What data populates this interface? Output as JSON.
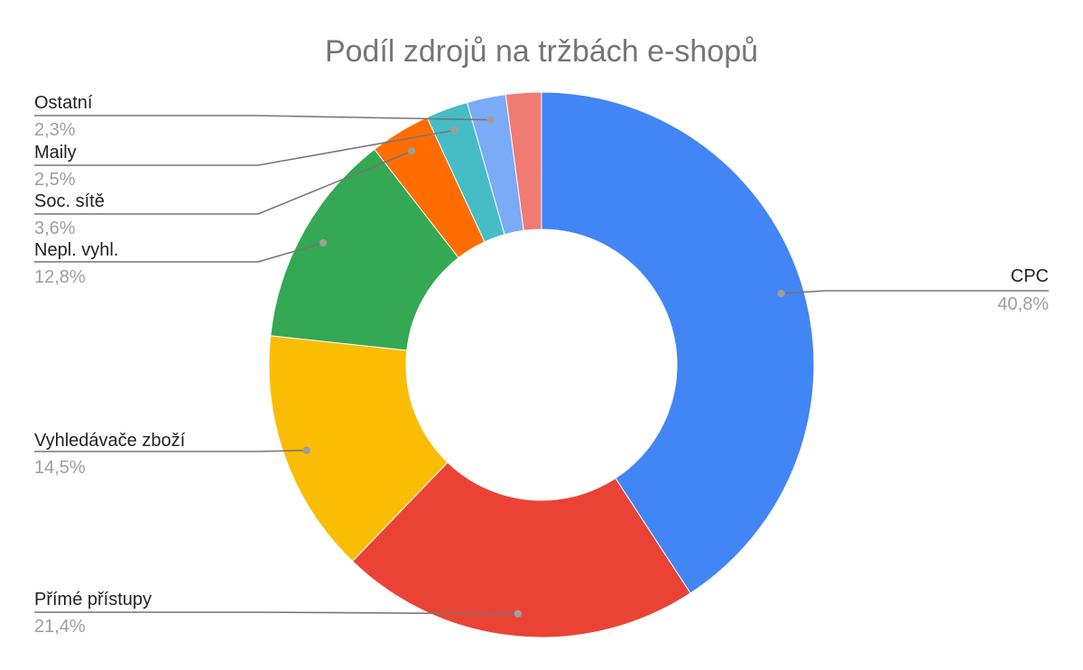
{
  "chart_data": {
    "type": "pie",
    "variant": "donut",
    "title": "Podíl zdrojů na tržbách e-shopů",
    "slices": [
      {
        "name": "CPC",
        "value_label": "40,8%",
        "value": 40.8,
        "color": "#4285f4"
      },
      {
        "name": "Přímé přístupy",
        "value_label": "21,4%",
        "value": 21.4,
        "color": "#ea4335"
      },
      {
        "name": "Vyhledávače zboží",
        "value_label": "14,5%",
        "value": 14.5,
        "color": "#fbbc04"
      },
      {
        "name": "Nepl. vyhl.",
        "value_label": "12,8%",
        "value": 12.8,
        "color": "#34a853"
      },
      {
        "name": "Soc. sítě",
        "value_label": "3,6%",
        "value": 3.6,
        "color": "#ff6d01"
      },
      {
        "name": "Maily",
        "value_label": "2,5%",
        "value": 2.5,
        "color": "#46bdc6"
      },
      {
        "name": "Ostatní",
        "value_label": "2,3%",
        "value": 2.3,
        "color": "#7baaf7"
      },
      {
        "name": "",
        "value_label": "",
        "value": 2.1,
        "color": "#f07b72"
      }
    ]
  }
}
